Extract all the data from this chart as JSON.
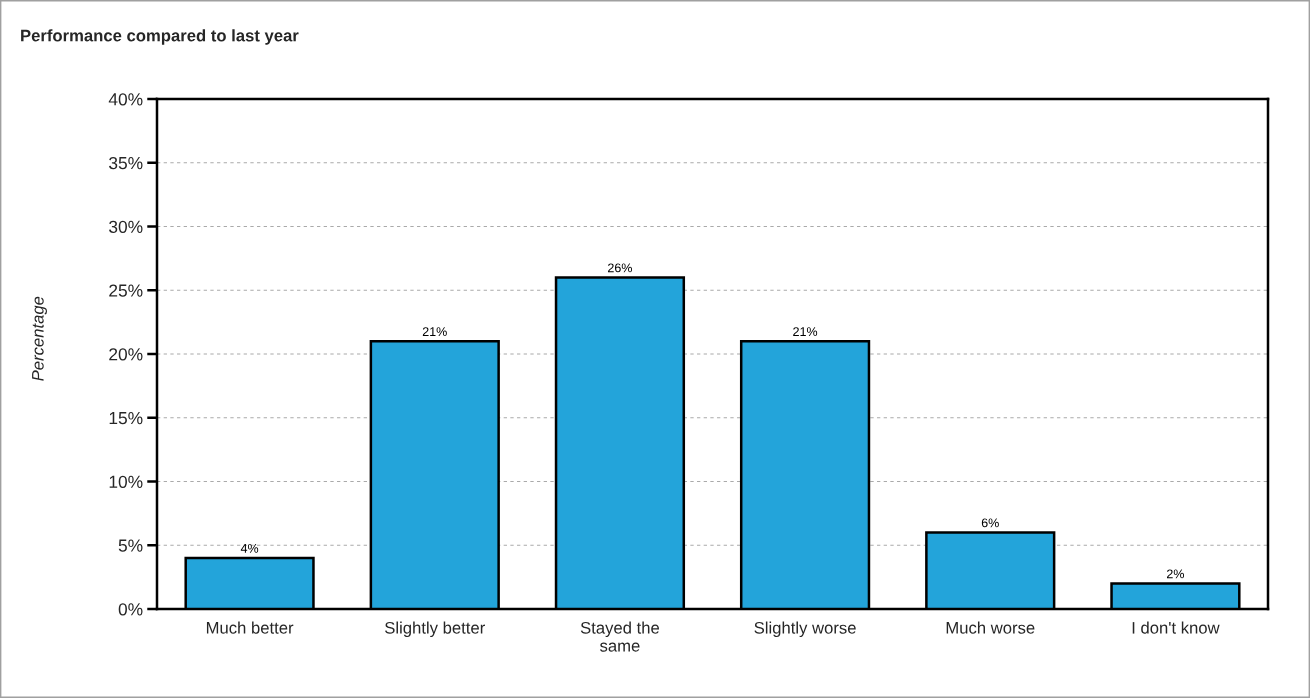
{
  "chart_data": {
    "type": "bar",
    "title": "Performance compared to last year",
    "ylabel": "Percentage",
    "categories": [
      "Much better",
      "Slightly better",
      "Stayed the\nsame",
      "Slightly worse",
      "Much worse",
      "I don't know"
    ],
    "values": [
      4,
      21,
      26,
      21,
      6,
      2
    ],
    "value_labels": [
      "4%",
      "21%",
      "26%",
      "21%",
      "6%",
      "2%"
    ],
    "color": "#23a4da",
    "ylim": [
      0,
      40
    ],
    "yticks": [
      {
        "value": 0,
        "label": "0%"
      },
      {
        "value": 5,
        "label": "5%"
      },
      {
        "value": 10,
        "label": "10%"
      },
      {
        "value": 15,
        "label": "15%"
      },
      {
        "value": 20,
        "label": "20%"
      },
      {
        "value": 25,
        "label": "25%"
      },
      {
        "value": 30,
        "label": "30%"
      },
      {
        "value": 35,
        "label": "35%"
      },
      {
        "value": 40,
        "label": "40%"
      }
    ],
    "grid": "y"
  }
}
